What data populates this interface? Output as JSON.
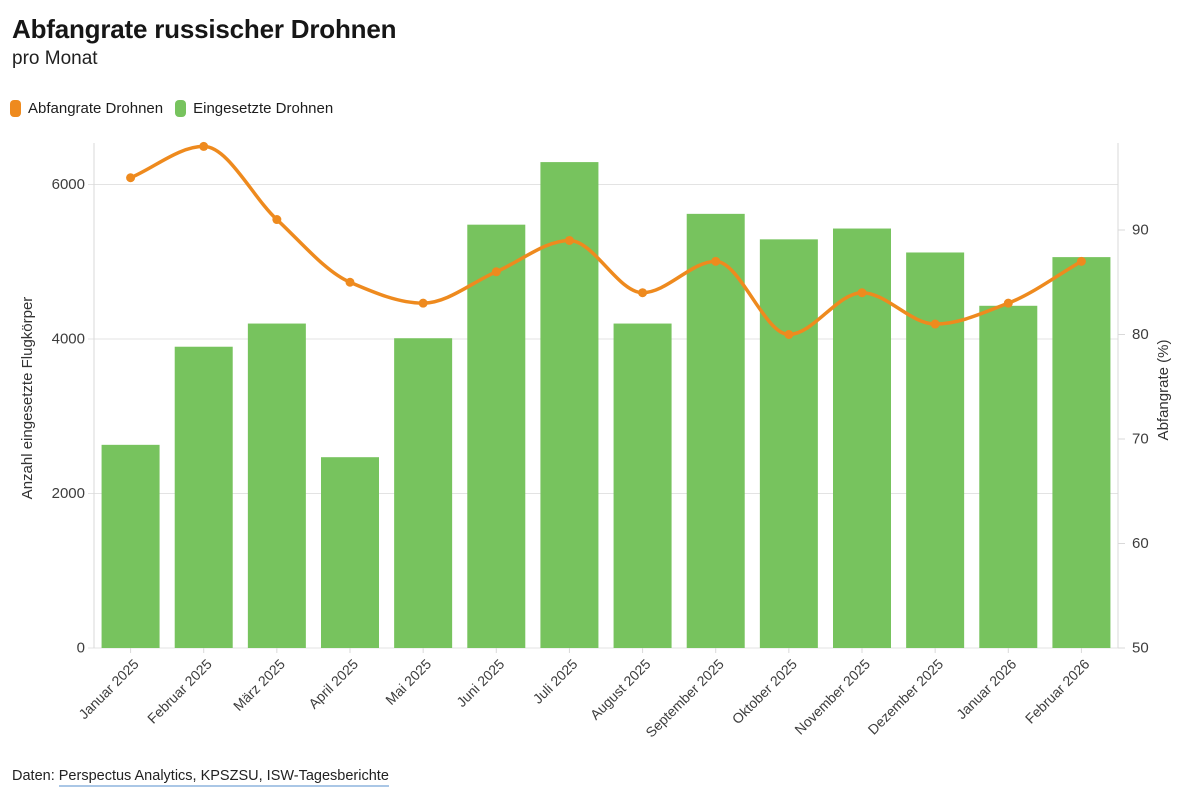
{
  "header": {
    "title": "Abfangrate russischer Drohnen",
    "subtitle": "pro Monat"
  },
  "legend": [
    {
      "label": "Abfangrate Drohnen",
      "color": "#EE8A1E"
    },
    {
      "label": "Eingesetzte Drohnen",
      "color": "#77C35E"
    }
  ],
  "footer": {
    "prefix": "Daten: ",
    "sources": "Perspectus Analytics, KPSZSU, ISW-Tagesberichte"
  },
  "chart_data": {
    "type": "bar+line (dual y-axis combo)",
    "categories": [
      "Januar 2025",
      "Februar 2025",
      "März 2025",
      "April 2025",
      "Mai 2025",
      "Juni 2025",
      "Juli 2025",
      "August 2025",
      "September 2025",
      "Oktober 2025",
      "November 2025",
      "Dezember 2025",
      "Januar 2026",
      "Februar 2026"
    ],
    "series": [
      {
        "name": "Eingesetzte Drohnen",
        "kind": "bar",
        "axis": "left",
        "color": "#77C35E",
        "values": [
          2630,
          3900,
          4200,
          2470,
          4010,
          5480,
          6290,
          4200,
          5620,
          5290,
          5430,
          5120,
          4430,
          5060
        ]
      },
      {
        "name": "Abfangrate Drohnen",
        "kind": "line",
        "axis": "right",
        "color": "#EE8A1E",
        "values": [
          95,
          98,
          91,
          85,
          83,
          86,
          89,
          84,
          87,
          80,
          84,
          81,
          83,
          87
        ]
      }
    ],
    "left_axis": {
      "title": "Anzahl eingesetzte Flugkörper",
      "ticks": [
        0,
        2000,
        4000,
        6000
      ],
      "range": [
        0,
        6540
      ]
    },
    "right_axis": {
      "title": "Abfangrate (%)",
      "ticks": [
        50,
        60,
        70,
        80,
        90
      ],
      "range": [
        50,
        98.3
      ],
      "unit": "%"
    },
    "grid": true,
    "legend_position": "top-left",
    "x_label_rotation": -45,
    "colors": {
      "grid": "#E3E3E3",
      "axis_line": "#D9D9D9",
      "tick_text": "#3D3D3D",
      "axis_title_text": "#333333"
    }
  }
}
